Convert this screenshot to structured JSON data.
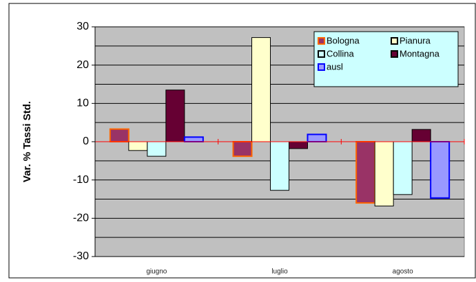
{
  "chart_data": {
    "type": "bar",
    "y_label": "Var. % Tassi Std.",
    "categories": [
      "giugno",
      "luglio",
      "agosto"
    ],
    "series": [
      {
        "name": "Bologna",
        "color": "#993366",
        "border": "#ff6600",
        "values": [
          3.3,
          -3.8,
          -16
        ]
      },
      {
        "name": "Pianura",
        "color": "#ffffcc",
        "border": "#000000",
        "values": [
          -2.3,
          27.2,
          -16.8
        ]
      },
      {
        "name": "Collina",
        "color": "#ccffff",
        "border": "#000000",
        "values": [
          -3.8,
          -12.7,
          -13.8
        ]
      },
      {
        "name": "Montagna",
        "color": "#660033",
        "border": "#000000",
        "values": [
          13.5,
          -1.8,
          3.2
        ]
      },
      {
        "name": "ausl",
        "color": "#9999ff",
        "border": "#0000ff",
        "values": [
          1.2,
          1.9,
          -14.7
        ]
      }
    ],
    "ylim": [
      -30,
      30
    ],
    "yticks": [
      -30,
      -20,
      -10,
      0,
      10,
      20,
      30
    ],
    "minor_gridlines": [
      -25,
      -15,
      -5,
      5,
      15,
      25
    ],
    "grid": true,
    "legend": "top-right"
  }
}
